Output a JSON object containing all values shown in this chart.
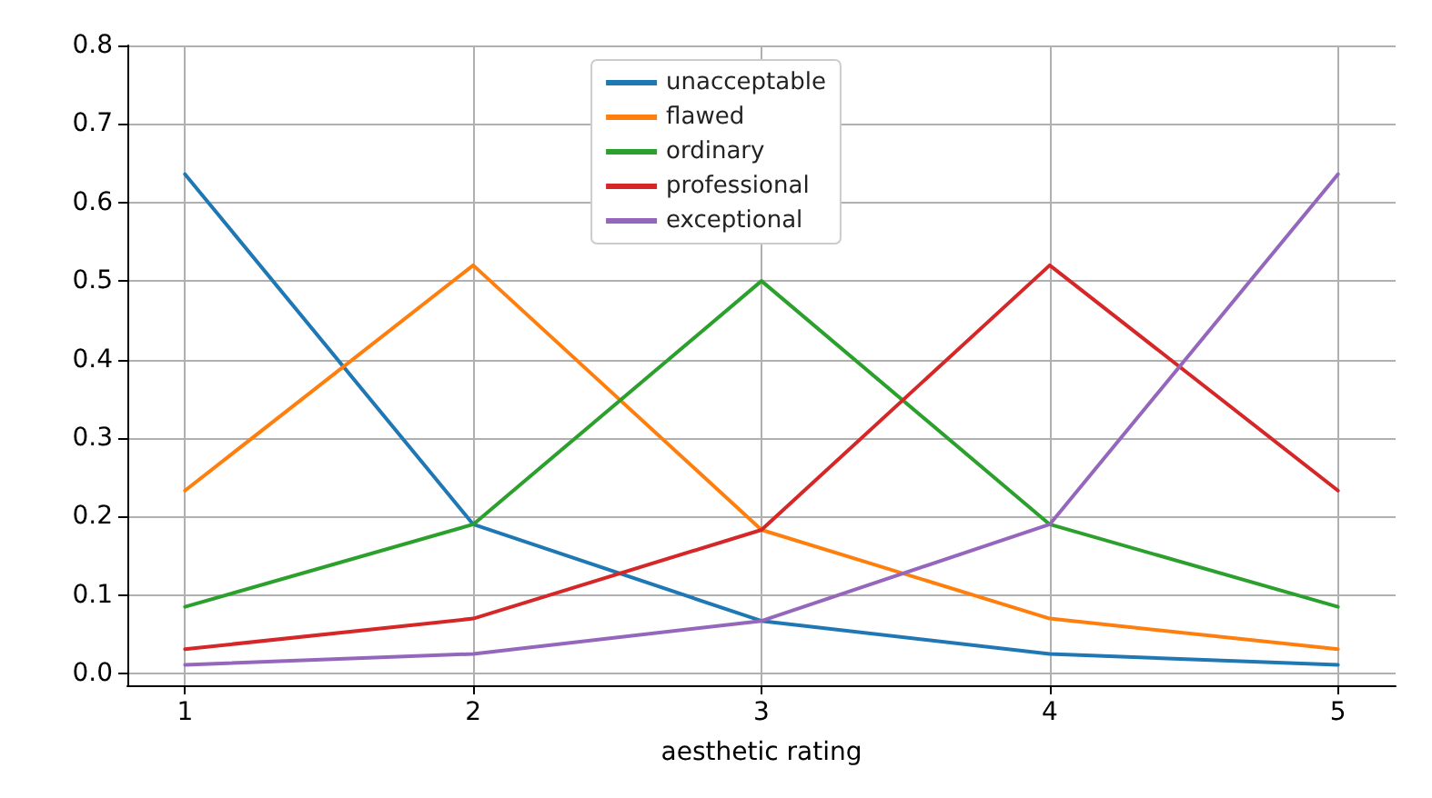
{
  "chart_data": {
    "type": "line",
    "xlabel": "aesthetic rating",
    "x": [
      1,
      2,
      3,
      4,
      5
    ],
    "series": [
      {
        "name": "unacceptable",
        "color": "#1f77b4",
        "values": [
          0.636,
          0.19,
          0.067,
          0.025,
          0.011
        ]
      },
      {
        "name": "flawed",
        "color": "#ff7f0e",
        "values": [
          0.233,
          0.52,
          0.183,
          0.07,
          0.031
        ]
      },
      {
        "name": "ordinary",
        "color": "#2ca02c",
        "values": [
          0.085,
          0.19,
          0.5,
          0.19,
          0.085
        ]
      },
      {
        "name": "professional",
        "color": "#d62728",
        "values": [
          0.031,
          0.07,
          0.183,
          0.52,
          0.233
        ]
      },
      {
        "name": "exceptional",
        "color": "#9467bd",
        "values": [
          0.011,
          0.025,
          0.067,
          0.19,
          0.636
        ]
      }
    ],
    "xlim": [
      0.8,
      5.2
    ],
    "ylim": [
      -0.015,
      0.8
    ],
    "xticks": [
      1,
      2,
      3,
      4,
      5
    ],
    "yticks": [
      {
        "value": 0,
        "label": "0.0"
      },
      {
        "value": 0.1,
        "label": "0.1"
      },
      {
        "value": 0.2,
        "label": "0.2"
      },
      {
        "value": 0.3,
        "label": "0.3"
      },
      {
        "value": 0.4,
        "label": "0.4"
      },
      {
        "value": 0.5,
        "label": "0.5"
      },
      {
        "value": 0.6,
        "label": "0.6"
      },
      {
        "value": 0.7,
        "label": "0.7"
      },
      {
        "value": 0.8,
        "label": "0.8"
      }
    ],
    "grid": true,
    "legend": "top",
    "marker": "none",
    "line_style": "solid"
  }
}
